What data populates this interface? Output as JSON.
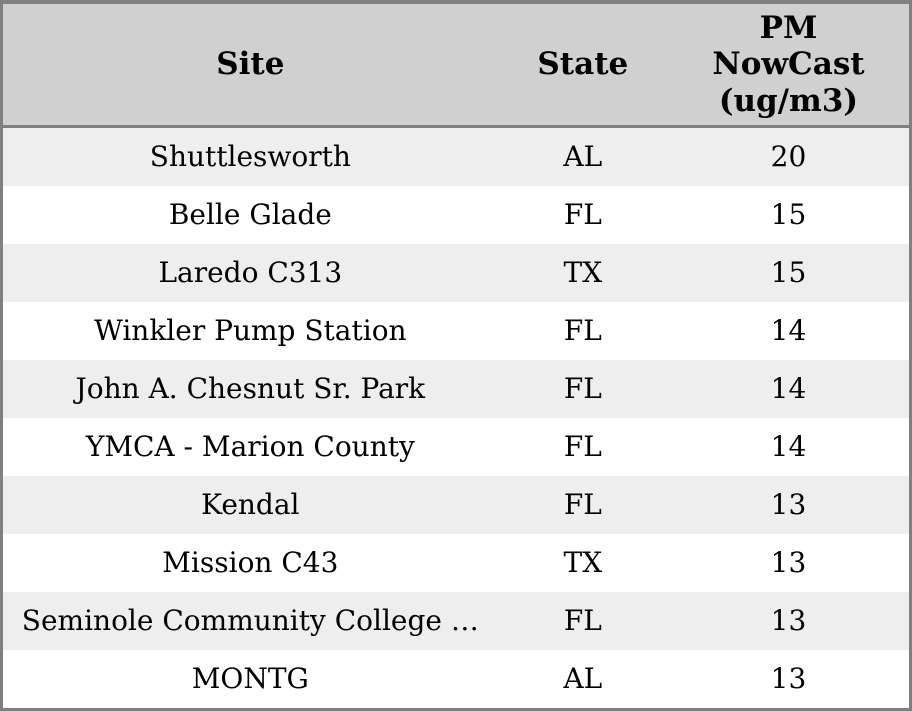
{
  "chart_data": {
    "type": "table",
    "columns": [
      "Site",
      "State",
      "PM NowCast (ug/m3)"
    ],
    "rows": [
      [
        "Shuttlesworth",
        "AL",
        20
      ],
      [
        "Belle Glade",
        "FL",
        15
      ],
      [
        "Laredo C313",
        "TX",
        15
      ],
      [
        "Winkler Pump Station",
        "FL",
        14
      ],
      [
        "John A. Chesnut Sr. Park",
        "FL",
        14
      ],
      [
        "YMCA - Marion County",
        "FL",
        14
      ],
      [
        "Kendal",
        "FL",
        13
      ],
      [
        "Mission C43",
        "TX",
        13
      ],
      [
        "Seminole Community College …",
        "FL",
        13
      ],
      [
        "MONTG",
        "AL",
        13
      ]
    ],
    "layout": {
      "header_alignment": "center",
      "cell_alignment": "center",
      "striped_rows": true
    }
  },
  "header": {
    "site_label": "Site",
    "state_label": "State",
    "pm_label": "PM\nNowCast\n(ug/m3)"
  },
  "colors": {
    "header_bg": "#d0d0d0",
    "row_alt_bg": "#eeeeee",
    "row_bg": "#ffffff",
    "border": "#808080",
    "text": "#000000"
  }
}
